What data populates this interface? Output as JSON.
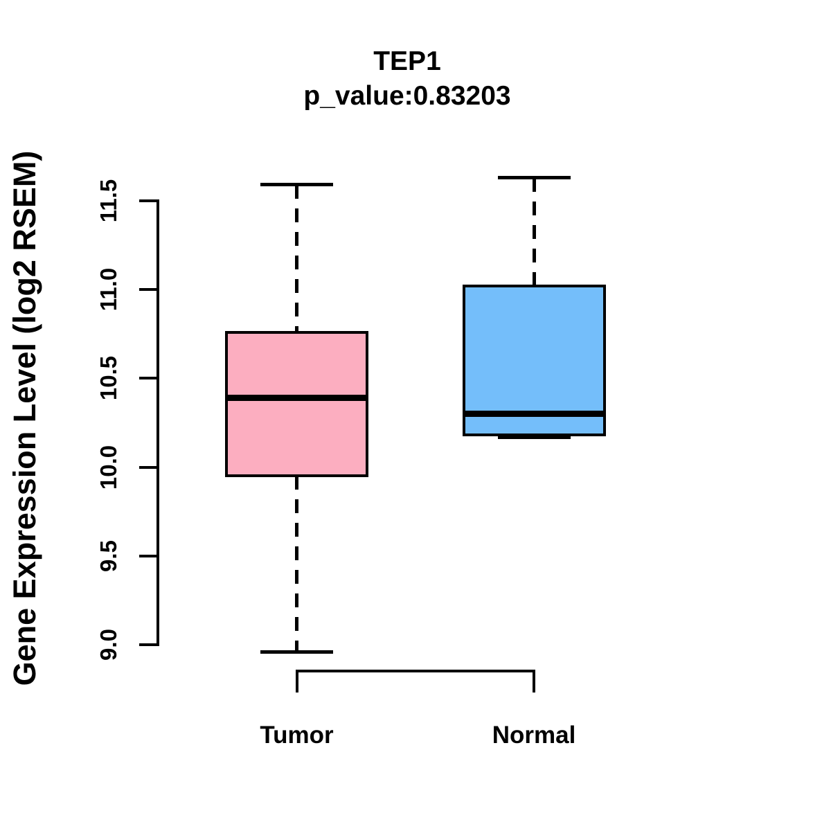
{
  "title": {
    "gene": "TEP1",
    "pvalue_line": "p_value:0.83203"
  },
  "axes": {
    "ylabel": "Gene Expression Level (log2 RSEM)",
    "ytick_labels": [
      "9.0",
      "9.5",
      "10.0",
      "10.5",
      "11.0",
      "11.5"
    ]
  },
  "chart_data": {
    "type": "boxplot",
    "title": "TEP1",
    "subtitle": "p_value:0.83203",
    "ylabel": "Gene Expression Level (log2 RSEM)",
    "ylim": [
      9.0,
      11.5
    ],
    "yticks": [
      9.0,
      9.5,
      10.0,
      10.5,
      11.0,
      11.5
    ],
    "grid": false,
    "categories": [
      "Tumor",
      "Normal"
    ],
    "groups": [
      {
        "label": "Tumor",
        "color": "#FCAEC0",
        "min": 8.96,
        "q1": 9.95,
        "median": 10.39,
        "q3": 10.76,
        "max": 11.59
      },
      {
        "label": "Normal",
        "color": "#74BEFA",
        "min": 10.17,
        "q1": 10.18,
        "median": 10.3,
        "q3": 11.02,
        "max": 11.63
      }
    ],
    "line_color": "#000000"
  }
}
